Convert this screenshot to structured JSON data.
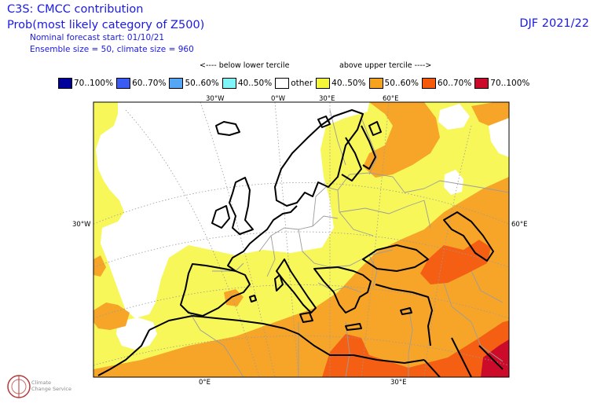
{
  "header": {
    "title": "C3S: CMCC contribution",
    "subtitle": "Prob(most likely category of Z500)",
    "forecast_start": "Nominal forecast start: 01/10/21",
    "ensemble": "Ensemble size = 50, climate size = 960",
    "season": "DJF 2021/22"
  },
  "tercile_labels": {
    "below": "<---- below lower tercile",
    "above": "above upper tercile ---->"
  },
  "legend": [
    {
      "label": "70..100%",
      "color": "#00009a"
    },
    {
      "label": "60..70%",
      "color": "#3a5cf5"
    },
    {
      "label": "50..60%",
      "color": "#55a6f5"
    },
    {
      "label": "40..50%",
      "color": "#80f5f5"
    },
    {
      "label": "other",
      "color": "#ffffff"
    },
    {
      "label": "40..50%",
      "color": "#f5f53a"
    },
    {
      "label": "50..60%",
      "color": "#f5a21c"
    },
    {
      "label": "60..70%",
      "color": "#f55a0c"
    },
    {
      "label": "70..100%",
      "color": "#cc0a2a"
    }
  ],
  "map": {
    "category_colors": {
      "other": "#ffffff",
      "above_40_50": "#f7f75a",
      "above_50_60": "#f7a529",
      "above_60_70": "#f55f14",
      "above_70_100": "#cc0a2a"
    }
  },
  "axis_labels": {
    "top": [
      "30°W",
      "0°W",
      "30°E",
      "60°E"
    ],
    "left": "30°W",
    "right": "60°E",
    "bottom": [
      "0°E",
      "30°E"
    ]
  },
  "logo": {
    "line1": "Climate",
    "line2": "Change Service"
  }
}
